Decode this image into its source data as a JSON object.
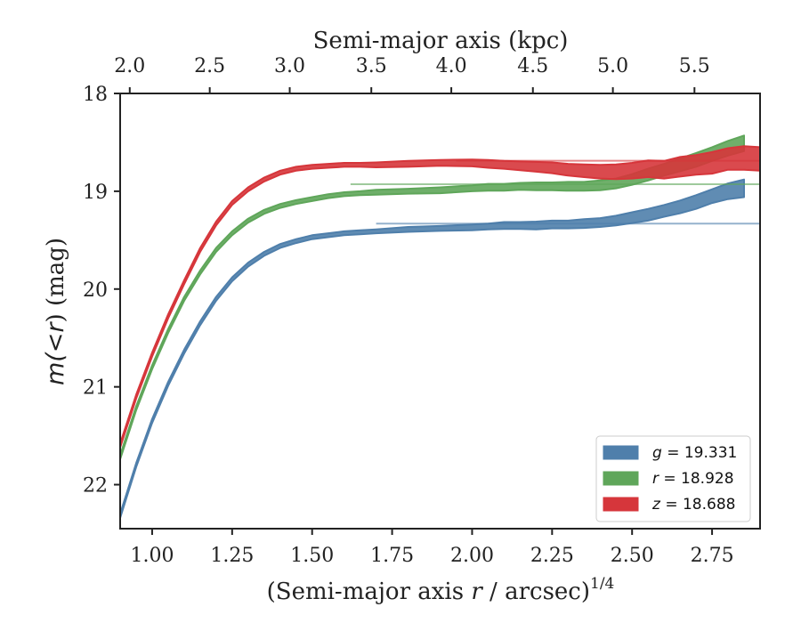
{
  "chart_data": {
    "type": "line",
    "xlabel_prefix": "(Semi-major axis ",
    "xlabel_var": "r",
    "xlabel_suffix": " / arcsec)",
    "xlabel_exp": "1/4",
    "ylabel_pre": "m",
    "ylabel_mid": "(<",
    "ylabel_var": "r",
    "ylabel_post": ") (mag)",
    "top_xlabel": "Semi-major axis (kpc)",
    "xlim": [
      0.9,
      2.9
    ],
    "ylim": [
      22.45,
      18.0
    ],
    "y_inverted": true,
    "xticks": [
      1.0,
      1.25,
      1.5,
      1.75,
      2.0,
      2.25,
      2.5,
      2.75
    ],
    "xtick_labels": [
      "1.00",
      "1.25",
      "1.50",
      "1.75",
      "2.00",
      "2.25",
      "2.50",
      "2.75"
    ],
    "yticks": [
      18,
      19,
      20,
      21,
      22
    ],
    "ytick_labels": [
      "18",
      "19",
      "20",
      "21",
      "22"
    ],
    "top_ticks": [
      2.0,
      2.5,
      3.0,
      3.5,
      4.0,
      4.5,
      5.0,
      5.5
    ],
    "top_tick_labels": [
      "2.0",
      "2.5",
      "3.0",
      "3.5",
      "4.0",
      "4.5",
      "5.0",
      "5.5"
    ],
    "top_tick_positions": [
      0.93,
      1.18,
      1.43,
      1.685,
      1.935,
      2.19,
      2.44,
      2.695
    ],
    "legend_position": "lower-right",
    "grid": false,
    "series": [
      {
        "name": "g",
        "label_value": "19.331",
        "color": "#4f7fab",
        "asymptote": 19.331,
        "asym_start": 1.7,
        "x": [
          0.9,
          0.95,
          1.0,
          1.05,
          1.1,
          1.15,
          1.2,
          1.25,
          1.3,
          1.35,
          1.4,
          1.45,
          1.5,
          1.55,
          1.6,
          1.65,
          1.7,
          1.8,
          1.9,
          2.0,
          2.05,
          2.1,
          2.15,
          2.2,
          2.25,
          2.3,
          2.35,
          2.4,
          2.45,
          2.5,
          2.55,
          2.6,
          2.65,
          2.7,
          2.75,
          2.8,
          2.85
        ],
        "y": [
          22.32,
          21.8,
          21.35,
          20.97,
          20.64,
          20.35,
          20.1,
          19.9,
          19.75,
          19.64,
          19.56,
          19.51,
          19.47,
          19.45,
          19.43,
          19.42,
          19.41,
          19.39,
          19.38,
          19.37,
          19.36,
          19.35,
          19.35,
          19.35,
          19.34,
          19.34,
          19.33,
          19.32,
          19.3,
          19.27,
          19.24,
          19.2,
          19.16,
          19.11,
          19.05,
          19.0,
          18.97
        ],
        "w": [
          0.02,
          0.02,
          0.02,
          0.02,
          0.02,
          0.02,
          0.02,
          0.02,
          0.02,
          0.02,
          0.02,
          0.02,
          0.02,
          0.02,
          0.02,
          0.02,
          0.02,
          0.025,
          0.025,
          0.03,
          0.03,
          0.035,
          0.035,
          0.04,
          0.04,
          0.04,
          0.045,
          0.045,
          0.05,
          0.055,
          0.06,
          0.06,
          0.065,
          0.07,
          0.07,
          0.08,
          0.09
        ]
      },
      {
        "name": "r",
        "label_value": "18.928",
        "color": "#5fa65a",
        "asymptote": 18.928,
        "asym_start": 1.62,
        "x": [
          0.9,
          0.95,
          1.0,
          1.05,
          1.1,
          1.15,
          1.2,
          1.25,
          1.3,
          1.35,
          1.4,
          1.45,
          1.5,
          1.55,
          1.6,
          1.65,
          1.7,
          1.8,
          1.9,
          2.0,
          2.05,
          2.1,
          2.15,
          2.2,
          2.25,
          2.3,
          2.35,
          2.4,
          2.45,
          2.5,
          2.55,
          2.6,
          2.65,
          2.7,
          2.75,
          2.8,
          2.85
        ],
        "y": [
          21.72,
          21.22,
          20.8,
          20.43,
          20.1,
          19.83,
          19.6,
          19.43,
          19.3,
          19.21,
          19.15,
          19.11,
          19.08,
          19.05,
          19.03,
          19.02,
          19.01,
          19.0,
          18.99,
          18.97,
          18.96,
          18.96,
          18.95,
          18.95,
          18.95,
          18.95,
          18.95,
          18.94,
          18.92,
          18.88,
          18.83,
          18.78,
          18.73,
          18.68,
          18.62,
          18.56,
          18.51
        ],
        "w": [
          0.02,
          0.02,
          0.02,
          0.02,
          0.02,
          0.02,
          0.02,
          0.02,
          0.02,
          0.02,
          0.02,
          0.02,
          0.02,
          0.02,
          0.02,
          0.02,
          0.025,
          0.025,
          0.03,
          0.03,
          0.035,
          0.035,
          0.035,
          0.04,
          0.04,
          0.045,
          0.045,
          0.05,
          0.05,
          0.055,
          0.06,
          0.06,
          0.065,
          0.07,
          0.07,
          0.075,
          0.08
        ]
      },
      {
        "name": "z",
        "label_value": "18.688",
        "color": "#d6363b",
        "asymptote": 18.688,
        "asym_start": 1.95,
        "x": [
          0.9,
          0.95,
          1.0,
          1.05,
          1.1,
          1.15,
          1.2,
          1.25,
          1.3,
          1.35,
          1.4,
          1.45,
          1.5,
          1.55,
          1.6,
          1.65,
          1.7,
          1.8,
          1.9,
          2.0,
          2.05,
          2.1,
          2.15,
          2.2,
          2.25,
          2.3,
          2.35,
          2.4,
          2.45,
          2.5,
          2.55,
          2.6,
          2.65,
          2.7,
          2.75,
          2.8,
          2.85,
          2.9
        ],
        "y": [
          21.6,
          21.1,
          20.67,
          20.28,
          19.93,
          19.6,
          19.33,
          19.12,
          18.98,
          18.88,
          18.81,
          18.77,
          18.75,
          18.74,
          18.73,
          18.73,
          18.73,
          18.72,
          18.71,
          18.71,
          18.72,
          18.73,
          18.74,
          18.75,
          18.76,
          18.78,
          18.79,
          18.8,
          18.8,
          18.79,
          18.77,
          18.78,
          18.75,
          18.73,
          18.71,
          18.67,
          18.66,
          18.67
        ],
        "w": [
          0.02,
          0.02,
          0.02,
          0.02,
          0.02,
          0.02,
          0.02,
          0.02,
          0.02,
          0.02,
          0.02,
          0.02,
          0.02,
          0.02,
          0.02,
          0.02,
          0.025,
          0.03,
          0.03,
          0.035,
          0.04,
          0.04,
          0.045,
          0.05,
          0.055,
          0.06,
          0.065,
          0.07,
          0.075,
          0.08,
          0.085,
          0.09,
          0.1,
          0.1,
          0.11,
          0.11,
          0.12,
          0.12
        ]
      }
    ]
  }
}
